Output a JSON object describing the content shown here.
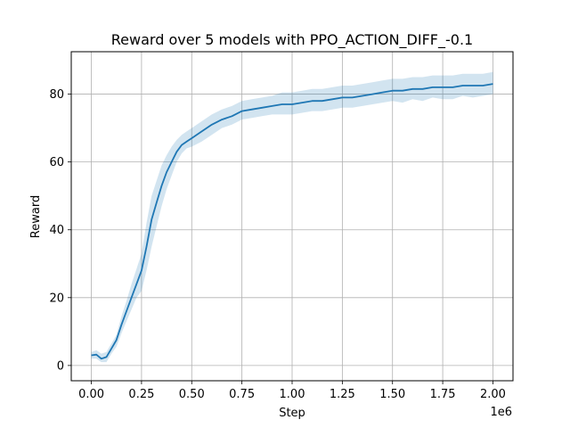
{
  "chart_data": {
    "type": "line",
    "title": "Reward over 5 models with PPO_ACTION_DIFF_-0.1",
    "xlabel": "Step",
    "ylabel": "Reward",
    "x_offset_label": "1e6",
    "xlim": [
      -0.1,
      2.1
    ],
    "ylim": [
      -4.5,
      92.5
    ],
    "x_ticks": [
      0.0,
      0.25,
      0.5,
      0.75,
      1.0,
      1.25,
      1.5,
      1.75,
      2.0
    ],
    "x_tick_labels": [
      "0.00",
      "0.25",
      "0.50",
      "0.75",
      "1.00",
      "1.25",
      "1.50",
      "1.75",
      "2.00"
    ],
    "y_ticks": [
      0,
      20,
      40,
      60,
      80
    ],
    "y_tick_labels": [
      "0",
      "20",
      "40",
      "60",
      "80"
    ],
    "grid": true,
    "colors": {
      "line": "#1f77b4",
      "band": "#1f77b4",
      "grid": "#b0b0b0"
    },
    "series": [
      {
        "x": [
          0.0,
          0.025,
          0.05,
          0.075,
          0.1,
          0.125,
          0.15,
          0.175,
          0.2,
          0.225,
          0.25,
          0.275,
          0.3,
          0.325,
          0.35,
          0.375,
          0.4,
          0.425,
          0.45,
          0.475,
          0.5,
          0.55,
          0.6,
          0.65,
          0.7,
          0.75,
          0.8,
          0.85,
          0.9,
          0.95,
          1.0,
          1.05,
          1.1,
          1.15,
          1.2,
          1.25,
          1.3,
          1.35,
          1.4,
          1.45,
          1.5,
          1.55,
          1.6,
          1.65,
          1.7,
          1.75,
          1.8,
          1.85,
          1.9,
          1.95,
          2.0
        ],
        "values": [
          3.0,
          3.2,
          2.0,
          2.5,
          5.0,
          7.5,
          12.0,
          16.0,
          20.0,
          24.0,
          28.0,
          35.0,
          43.0,
          48.0,
          53.0,
          57.0,
          60.0,
          63.0,
          65.0,
          66.0,
          67.0,
          69.0,
          71.0,
          72.5,
          73.5,
          75.0,
          75.5,
          76.0,
          76.5,
          77.0,
          77.0,
          77.5,
          78.0,
          78.0,
          78.5,
          79.0,
          79.0,
          79.5,
          80.0,
          80.5,
          81.0,
          81.0,
          81.5,
          81.5,
          82.0,
          82.0,
          82.0,
          82.5,
          82.5,
          82.5,
          83.0
        ],
        "lower": [
          2.0,
          2.0,
          1.0,
          1.0,
          3.5,
          5.5,
          9.5,
          13.0,
          16.5,
          20.0,
          22.0,
          28.0,
          35.0,
          41.0,
          47.0,
          52.0,
          56.0,
          60.0,
          62.5,
          64.0,
          64.5,
          66.0,
          68.0,
          70.0,
          71.0,
          72.5,
          73.0,
          73.5,
          74.0,
          74.0,
          74.0,
          74.5,
          75.0,
          75.0,
          75.5,
          76.0,
          76.0,
          76.5,
          77.0,
          77.5,
          78.0,
          77.5,
          78.5,
          78.0,
          79.0,
          78.5,
          78.5,
          79.5,
          79.0,
          79.5,
          80.0
        ],
        "upper": [
          4.0,
          4.5,
          3.5,
          4.0,
          6.5,
          9.0,
          14.5,
          19.0,
          24.0,
          28.5,
          33.0,
          42.0,
          50.0,
          54.5,
          59.0,
          62.0,
          64.5,
          66.5,
          68.0,
          69.0,
          70.0,
          72.0,
          74.0,
          75.5,
          76.5,
          78.0,
          78.5,
          79.0,
          79.5,
          80.5,
          80.5,
          81.0,
          81.5,
          81.5,
          82.0,
          82.5,
          82.5,
          83.0,
          83.5,
          84.0,
          84.5,
          84.5,
          85.0,
          85.0,
          85.5,
          85.5,
          85.5,
          86.0,
          86.0,
          86.0,
          86.5
        ]
      }
    ]
  }
}
